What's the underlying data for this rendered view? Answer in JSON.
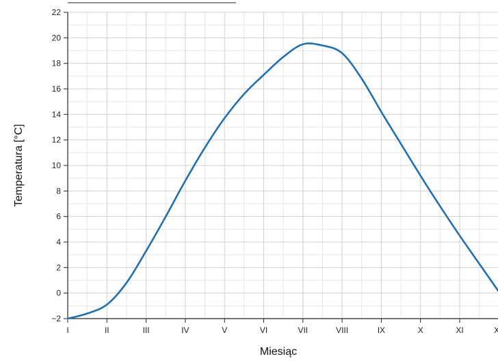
{
  "chart_data": {
    "type": "line",
    "title": "",
    "xlabel": "Miesiąc",
    "ylabel": "Temperatura [°C]",
    "x_ticks": [
      "I",
      "II",
      "III",
      "IV",
      "V",
      "VI",
      "VII",
      "VIII",
      "IX",
      "X",
      "XI",
      "XII"
    ],
    "y_ticks": [
      -2,
      0,
      2,
      4,
      6,
      8,
      10,
      12,
      14,
      16,
      18,
      20,
      22
    ],
    "ylim": [
      -2,
      22
    ],
    "xlim": [
      1,
      12
    ],
    "grid": true,
    "series": [
      {
        "color": "#1f6fb2",
        "points": [
          {
            "x": 1.0,
            "y": -2.0
          },
          {
            "x": 1.5,
            "y": -1.6
          },
          {
            "x": 2.0,
            "y": -0.9
          },
          {
            "x": 2.5,
            "y": 0.8
          },
          {
            "x": 3.0,
            "y": 3.3
          },
          {
            "x": 3.5,
            "y": 6.0
          },
          {
            "x": 4.0,
            "y": 8.8
          },
          {
            "x": 4.5,
            "y": 11.4
          },
          {
            "x": 5.0,
            "y": 13.7
          },
          {
            "x": 5.5,
            "y": 15.6
          },
          {
            "x": 6.0,
            "y": 17.1
          },
          {
            "x": 6.5,
            "y": 18.5
          },
          {
            "x": 7.0,
            "y": 19.5
          },
          {
            "x": 7.5,
            "y": 19.4
          },
          {
            "x": 8.0,
            "y": 18.8
          },
          {
            "x": 8.5,
            "y": 16.8
          },
          {
            "x": 9.0,
            "y": 14.2
          },
          {
            "x": 9.5,
            "y": 11.7
          },
          {
            "x": 10.0,
            "y": 9.2
          },
          {
            "x": 10.5,
            "y": 6.8
          },
          {
            "x": 11.0,
            "y": 4.5
          },
          {
            "x": 11.5,
            "y": 2.3
          },
          {
            "x": 12.0,
            "y": 0.1
          }
        ]
      }
    ]
  }
}
